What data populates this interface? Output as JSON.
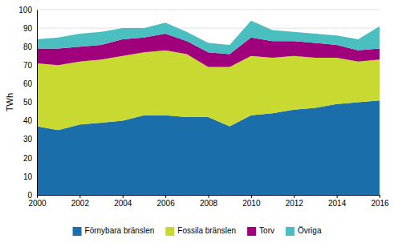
{
  "chart_data": {
    "type": "area",
    "stacked": true,
    "ylabel": "TWh",
    "x": [
      2000,
      2001,
      2002,
      2003,
      2004,
      2005,
      2006,
      2007,
      2008,
      2009,
      2010,
      2011,
      2012,
      2013,
      2014,
      2015,
      2016
    ],
    "series": [
      {
        "name": "Förnybara bränslen",
        "color": "#1a6faa",
        "values": [
          37,
          35,
          38,
          39,
          40,
          43,
          43,
          42,
          42,
          37,
          43,
          44,
          46,
          47,
          49,
          50,
          51
        ]
      },
      {
        "name": "Fossila bränslen",
        "color": "#c8d932",
        "values": [
          34,
          35,
          34,
          34,
          35,
          34,
          35,
          34,
          27,
          32,
          32,
          30,
          29,
          27,
          25,
          22,
          22
        ]
      },
      {
        "name": "Torv",
        "color": "#a0007c",
        "values": [
          8,
          9,
          8,
          8,
          9,
          8,
          9,
          7,
          8,
          7,
          10,
          9,
          8,
          8,
          7,
          6,
          6
        ]
      },
      {
        "name": "Övriga",
        "color": "#4bbfbf",
        "values": [
          5,
          6,
          7,
          7,
          6,
          5,
          6,
          5,
          5,
          5,
          9,
          6,
          5,
          5,
          5,
          6,
          12
        ]
      }
    ],
    "xlim": [
      2000,
      2016
    ],
    "xticks": [
      2000,
      2002,
      2004,
      2006,
      2008,
      2010,
      2012,
      2014,
      2016
    ],
    "ylim": [
      0,
      100
    ],
    "yticks": [
      0,
      10,
      20,
      30,
      40,
      50,
      60,
      70,
      80,
      90,
      100
    ],
    "grid": true,
    "legend": "bottom"
  }
}
